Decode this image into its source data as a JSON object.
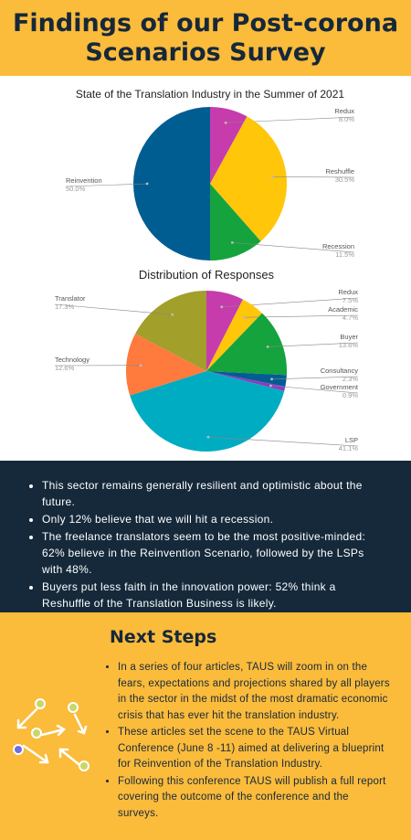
{
  "header": {
    "title_line1": "Findings of our Post-corona",
    "title_line2": "Scenarios Survey"
  },
  "chart_data": [
    {
      "type": "pie",
      "title": "State of the Translation Industry in the Summer of 2021",
      "slices": [
        {
          "label": "Redux",
          "value": 8.0,
          "value_label": "8.0%",
          "color": "#c63cad"
        },
        {
          "label": "Reshuffle",
          "value": 30.5,
          "value_label": "30.5%",
          "color": "#ffc60a"
        },
        {
          "label": "Recession",
          "value": 11.5,
          "value_label": "11.5%",
          "color": "#14a33d"
        },
        {
          "label": "Reinvention",
          "value": 50.0,
          "value_label": "50.0%",
          "color": "#005d92"
        }
      ]
    },
    {
      "type": "pie",
      "title": "Distribution of Responses",
      "slices": [
        {
          "label": "Redux",
          "value": 7.5,
          "value_label": "7.5%",
          "color": "#c63cad"
        },
        {
          "label": "Academic",
          "value": 4.7,
          "value_label": "4.7%",
          "color": "#ffc60a"
        },
        {
          "label": "Buyer",
          "value": 13.6,
          "value_label": "13.6%",
          "color": "#14a33d"
        },
        {
          "label": "Consultancy",
          "value": 2.3,
          "value_label": "2.3%",
          "color": "#005d92"
        },
        {
          "label": "Government",
          "value": 0.9,
          "value_label": "0.9%",
          "color": "#8e3ac4"
        },
        {
          "label": "LSP",
          "value": 41.1,
          "value_label": "41.1%",
          "color": "#00acc1"
        },
        {
          "label": "Technology",
          "value": 12.6,
          "value_label": "12.6%",
          "color": "#ff7a3d"
        },
        {
          "label": "Translator",
          "value": 17.3,
          "value_label": "17.3%",
          "color": "#a29f2b"
        }
      ]
    }
  ],
  "findings": {
    "items": [
      "This sector remains generally resilient and optimistic about the future.",
      "Only 12% believe that we will hit a recession.",
      "The freelance translators seem to be the most positive-minded: 62% believe in the Reinvention Scenario, followed by the LSPs with 48%.",
      "Buyers put less faith in the innovation power: 52% think a Reshuffle of the Translation Business is likely."
    ]
  },
  "next_steps": {
    "title": "Next Steps",
    "items": [
      "In a series of four articles, TAUS will zoom in on the fears, expectations and projections shared by all players in the sector in the midst of the most dramatic economic crisis that has ever hit the translation industry.",
      "These articles set the scene to the TAUS Virtual Conference (June 8 -11) aimed at delivering a blueprint for Reinvention of the Translation Industry.",
      "Following this conference TAUS will publish a full report covering the outcome of the conference and the surveys."
    ]
  },
  "colors": {
    "header_bg": "#fbbb3b",
    "dark_bg": "#15293a",
    "title_text": "#16283a",
    "label_text": "#555555",
    "value_text": "#999999"
  },
  "icons": {
    "decoration": "connected-nodes-arrows-icon"
  }
}
